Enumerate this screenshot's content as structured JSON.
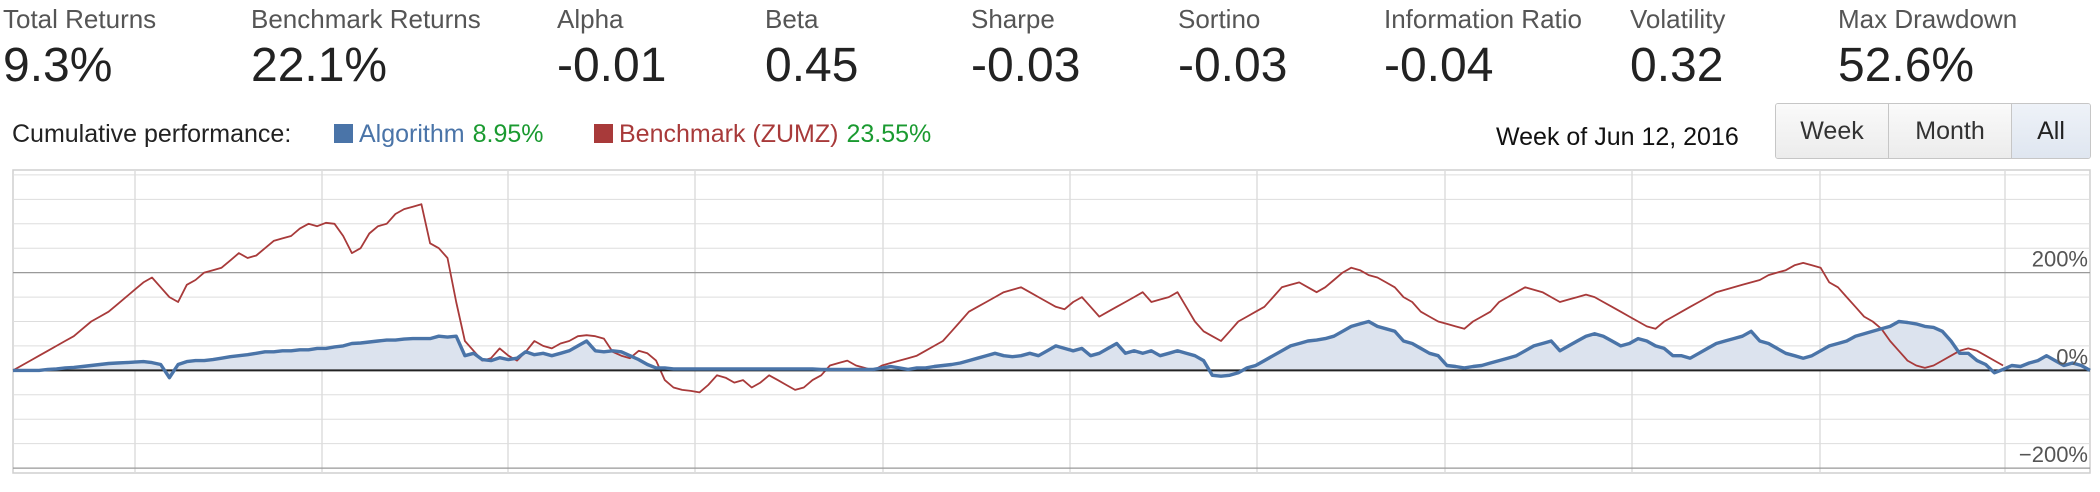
{
  "metrics": [
    {
      "label": "Total Returns",
      "value": "9.3%"
    },
    {
      "label": "Benchmark Returns",
      "value": "22.1%"
    },
    {
      "label": "Alpha",
      "value": "-0.01"
    },
    {
      "label": "Beta",
      "value": "0.45"
    },
    {
      "label": "Sharpe",
      "value": "-0.03"
    },
    {
      "label": "Sortino",
      "value": "-0.03"
    },
    {
      "label": "Information Ratio",
      "value": "-0.04"
    },
    {
      "label": "Volatility",
      "value": "0.32"
    },
    {
      "label": "Max Drawdown",
      "value": "52.6%"
    }
  ],
  "performance": {
    "title": "Cumulative performance:",
    "week_label": "Week of Jun 12, 2016"
  },
  "range_buttons": [
    "Week",
    "Month",
    "All"
  ],
  "active_range": "All",
  "colors": {
    "algorithm": "#4a74a8",
    "benchmark": "#a83a3a",
    "positive": "#1a9a30",
    "area_fill": "#dce3ee",
    "grid": "#dddddd"
  },
  "chart_data": {
    "type": "line",
    "title": "Cumulative performance:",
    "xlabel": "",
    "ylabel": "",
    "ylim": [
      -210,
      410
    ],
    "y_ticks": [
      200,
      0,
      -200
    ],
    "y_tick_labels": [
      "200%",
      "0%",
      "−200%"
    ],
    "grid": true,
    "legend_placement": "top-left",
    "series": [
      {
        "name": "Algorithm",
        "legend_value": "8.95%",
        "values": [
          0,
          0,
          0,
          0,
          2,
          3,
          5,
          6,
          8,
          10,
          12,
          14,
          15,
          16,
          17,
          18,
          16,
          12,
          -15,
          12,
          18,
          20,
          20,
          22,
          25,
          28,
          30,
          32,
          35,
          38,
          38,
          40,
          40,
          42,
          42,
          45,
          45,
          48,
          50,
          55,
          56,
          58,
          60,
          62,
          62,
          64,
          65,
          65,
          65,
          70,
          68,
          70,
          30,
          35,
          22,
          20,
          26,
          22,
          25,
          38,
          32,
          35,
          30,
          35,
          40,
          50,
          60,
          40,
          38,
          40,
          38,
          30,
          22,
          12,
          5,
          5,
          3,
          3,
          3,
          3,
          3,
          3,
          3,
          3,
          3,
          3,
          3,
          3,
          3,
          3,
          3,
          3,
          3,
          2,
          2,
          2,
          2,
          2,
          2,
          2,
          5,
          8,
          5,
          2,
          5,
          5,
          8,
          10,
          12,
          15,
          20,
          25,
          30,
          35,
          30,
          28,
          30,
          35,
          30,
          40,
          50,
          45,
          40,
          45,
          30,
          35,
          45,
          55,
          35,
          40,
          35,
          40,
          30,
          35,
          40,
          35,
          30,
          20,
          -10,
          -12,
          -10,
          -5,
          5,
          10,
          20,
          30,
          40,
          50,
          55,
          60,
          62,
          65,
          70,
          80,
          90,
          95,
          100,
          90,
          85,
          80,
          60,
          55,
          45,
          35,
          30,
          10,
          8,
          5,
          8,
          10,
          15,
          20,
          25,
          30,
          40,
          50,
          55,
          60,
          40,
          50,
          60,
          70,
          75,
          70,
          60,
          50,
          55,
          65,
          60,
          50,
          45,
          30,
          30,
          25,
          35,
          45,
          55,
          60,
          65,
          70,
          80,
          60,
          55,
          45,
          35,
          30,
          25,
          30,
          40,
          50,
          55,
          60,
          70,
          75,
          80,
          85,
          90,
          100,
          98,
          95,
          90,
          88,
          80,
          60,
          35,
          35,
          20,
          12,
          -5,
          2,
          10,
          8,
          15,
          20,
          30,
          20,
          10,
          15,
          10,
          0
        ]
      },
      {
        "name": "Benchmark (ZUMZ)",
        "legend_value": "23.55%",
        "values": [
          0,
          10,
          20,
          30,
          40,
          50,
          60,
          70,
          85,
          100,
          110,
          120,
          135,
          150,
          165,
          180,
          190,
          170,
          150,
          140,
          175,
          185,
          200,
          205,
          210,
          225,
          240,
          230,
          235,
          250,
          265,
          270,
          275,
          290,
          300,
          295,
          302,
          300,
          275,
          240,
          250,
          280,
          295,
          300,
          320,
          330,
          335,
          340,
          260,
          250,
          230,
          140,
          60,
          40,
          20,
          25,
          45,
          30,
          20,
          38,
          60,
          50,
          45,
          55,
          60,
          70,
          72,
          70,
          65,
          38,
          30,
          25,
          40,
          35,
          20,
          -20,
          -35,
          -40,
          -42,
          -45,
          -30,
          -10,
          -15,
          -25,
          -20,
          -35,
          -25,
          -10,
          -20,
          -30,
          -40,
          -35,
          -20,
          -10,
          10,
          15,
          20,
          10,
          5,
          0,
          10,
          15,
          20,
          25,
          30,
          40,
          50,
          60,
          80,
          100,
          120,
          130,
          140,
          150,
          160,
          165,
          170,
          160,
          150,
          140,
          130,
          125,
          140,
          150,
          130,
          110,
          120,
          130,
          140,
          150,
          160,
          140,
          145,
          150,
          160,
          130,
          100,
          80,
          70,
          60,
          80,
          100,
          110,
          120,
          130,
          150,
          170,
          175,
          180,
          170,
          160,
          170,
          185,
          200,
          210,
          205,
          195,
          190,
          180,
          170,
          150,
          140,
          120,
          110,
          100,
          95,
          90,
          85,
          100,
          110,
          120,
          140,
          150,
          160,
          170,
          165,
          160,
          150,
          140,
          145,
          150,
          155,
          150,
          140,
          130,
          120,
          110,
          100,
          90,
          85,
          100,
          110,
          120,
          130,
          140,
          150,
          160,
          165,
          170,
          175,
          180,
          185,
          195,
          200,
          205,
          215,
          220,
          215,
          210,
          180,
          170,
          150,
          130,
          110,
          100,
          85,
          60,
          40,
          20,
          10,
          5,
          10,
          20,
          30,
          40,
          45,
          40,
          30,
          20,
          10
        ]
      }
    ]
  }
}
